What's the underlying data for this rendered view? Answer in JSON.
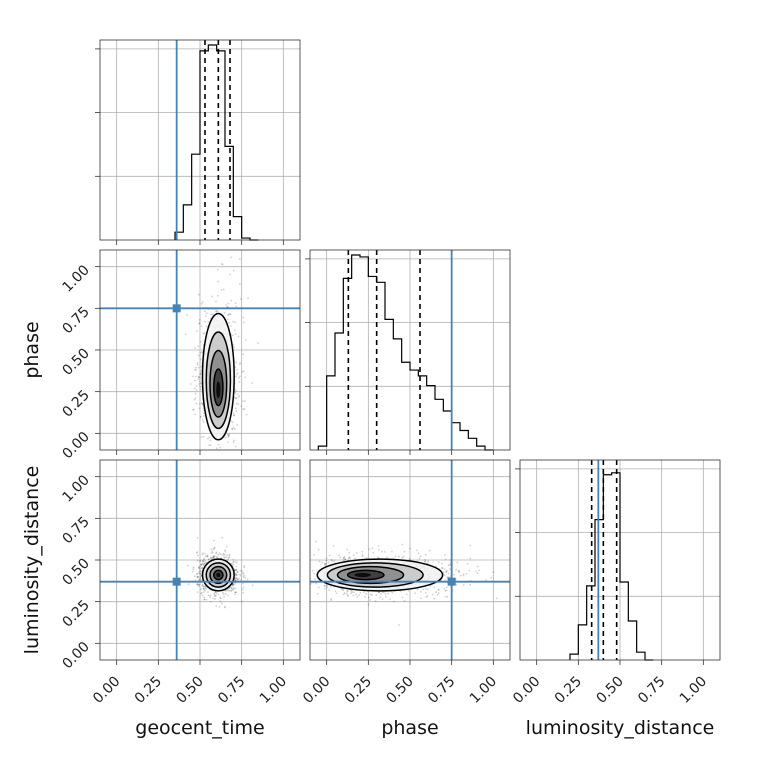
{
  "chart_data": {
    "type": "corner",
    "parameters": [
      "geocent_time",
      "phase",
      "luminosity_distance"
    ],
    "axis_range": [
      -0.1,
      1.1
    ],
    "ticks": [
      0.0,
      0.25,
      0.5,
      0.75,
      1.0
    ],
    "tick_labels": [
      "0.00",
      "0.25",
      "0.50",
      "0.75",
      "1.00"
    ],
    "grid": true,
    "truths": {
      "geocent_time": 0.36,
      "phase": 0.75,
      "luminosity_distance": 0.37
    },
    "truth_color": "#4682b4",
    "histograms": [
      {
        "parameter": "geocent_time",
        "quantiles": [
          0.53,
          0.61,
          0.68
        ],
        "bin_edges": [
          0.35,
          0.4,
          0.45,
          0.5,
          0.55,
          0.6,
          0.65,
          0.7,
          0.75,
          0.8,
          0.85
        ],
        "heights": [
          0.04,
          0.18,
          0.44,
          0.97,
          1.0,
          0.97,
          0.48,
          0.12,
          0.01,
          0.0
        ]
      },
      {
        "parameter": "phase",
        "quantiles": [
          0.13,
          0.3,
          0.56
        ],
        "bin_edges": [
          -0.05,
          0.0,
          0.05,
          0.1,
          0.15,
          0.2,
          0.25,
          0.3,
          0.35,
          0.4,
          0.45,
          0.5,
          0.55,
          0.6,
          0.65,
          0.7,
          0.75,
          0.8,
          0.85,
          0.9,
          0.95,
          1.0
        ],
        "heights": [
          0.02,
          0.38,
          0.6,
          0.88,
          1.0,
          0.99,
          0.89,
          0.86,
          0.67,
          0.57,
          0.45,
          0.41,
          0.38,
          0.33,
          0.26,
          0.2,
          0.14,
          0.1,
          0.06,
          0.02,
          0.0
        ]
      },
      {
        "parameter": "luminosity_distance",
        "quantiles": [
          0.33,
          0.4,
          0.48
        ],
        "bin_edges": [
          0.2,
          0.25,
          0.3,
          0.35,
          0.4,
          0.45,
          0.5,
          0.55,
          0.6,
          0.65,
          0.7
        ],
        "heights": [
          0.03,
          0.18,
          0.38,
          0.72,
          0.95,
          0.96,
          0.4,
          0.2,
          0.04,
          0.0
        ]
      }
    ],
    "densities": [
      {
        "x": "geocent_time",
        "y": "phase",
        "center": [
          0.61,
          0.25
        ],
        "spread": [
          0.05,
          0.19
        ],
        "skew": 1.5
      },
      {
        "x": "geocent_time",
        "y": "luminosity_distance",
        "center": [
          0.61,
          0.41
        ],
        "spread": [
          0.05,
          0.05
        ],
        "skew": 0.0
      },
      {
        "x": "phase",
        "y": "luminosity_distance",
        "center": [
          0.2,
          0.41
        ],
        "spread": [
          0.18,
          0.05
        ],
        "skew": 1.8
      }
    ]
  }
}
